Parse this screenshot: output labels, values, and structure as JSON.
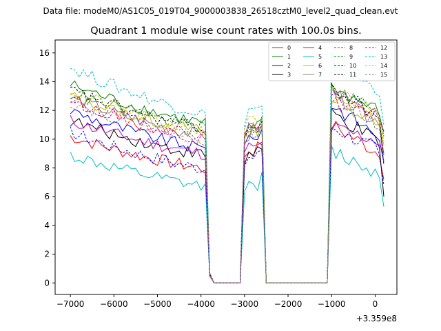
{
  "figure": {
    "suptitle": "Data file: modeM0/AS1C05_019T04_9000003838_26518cztM0_level2_quad_clean.evt",
    "title": "Quadrant 1 module wise count rates with 100.0s bins.",
    "x_offset_label": "+3.359e8"
  },
  "chart_data": {
    "type": "line",
    "title": "Quadrant 1 module wise count rates with 100.0s bins.",
    "xlabel": "",
    "ylabel": "",
    "xlim": [
      -7350,
      500
    ],
    "ylim": [
      -0.8,
      16.9
    ],
    "x_offset": 335900000,
    "xticks": [
      -7000,
      -6000,
      -5000,
      -4000,
      -3000,
      -2000,
      -1000,
      0
    ],
    "xtick_labels": [
      "−7000",
      "−6000",
      "−5000",
      "−4000",
      "−3000",
      "−2000",
      "−1000",
      "0"
    ],
    "yticks": [
      0,
      2,
      4,
      6,
      8,
      10,
      12,
      14,
      16
    ],
    "ytick_labels": [
      "0",
      "2",
      "4",
      "6",
      "8",
      "10",
      "12",
      "14",
      "16"
    ],
    "grid": false,
    "legend_position": "top-right",
    "segments": [
      {
        "start": -7000,
        "step": 100,
        "points": 32
      },
      {
        "start": -3800,
        "step": 100,
        "points": 7,
        "rates": [
          0.6,
          0.0,
          0.0,
          0.0,
          0.0,
          0.0,
          0.0
        ]
      },
      {
        "start": -3100,
        "step": 100,
        "points": 7,
        "rise": [
          0.0,
          0.62,
          0.88,
          0.93,
          0.97,
          0.98,
          0.0
        ]
      },
      {
        "start": -2400,
        "step": 100,
        "points": 13,
        "rates": [
          0,
          0,
          0,
          0,
          0,
          0,
          0,
          0,
          0,
          0,
          0,
          0,
          0
        ]
      },
      {
        "start": -1100,
        "step": 100,
        "points": 14
      }
    ],
    "series": [
      {
        "name": "0",
        "color": "#ff0000",
        "dashed": false,
        "base": 10.2,
        "slope": -3.0,
        "flare": [
          8.8,
          9.3,
          9.6
        ],
        "late": [
          11.0,
          9.0,
          7.2
        ]
      },
      {
        "name": "1",
        "color": "#008000",
        "dashed": false,
        "base": 13.8,
        "slope": -3.6,
        "flare": [
          10.3,
          11.1,
          11.4
        ],
        "late": [
          13.6,
          11.9,
          10.5
        ]
      },
      {
        "name": "2",
        "color": "#0000ff",
        "dashed": false,
        "base": 12.0,
        "slope": -3.6,
        "flare": [
          9.6,
          10.2,
          10.7
        ],
        "late": [
          12.4,
          10.2,
          8.4
        ]
      },
      {
        "name": "3",
        "color": "#000000",
        "dashed": false,
        "base": 11.3,
        "slope": -3.2,
        "flare": [
          8.2,
          8.9,
          9.3
        ],
        "late": [
          11.8,
          9.7,
          6.0
        ]
      },
      {
        "name": "4",
        "color": "#bf00bf",
        "dashed": false,
        "base": 11.3,
        "slope": -3.1,
        "flare": [
          9.0,
          9.4,
          9.8
        ],
        "late": [
          10.8,
          9.9,
          9.0
        ]
      },
      {
        "name": "5",
        "color": "#00bfbf",
        "dashed": false,
        "base": 8.9,
        "slope": -3.0,
        "flare": [
          6.2,
          6.6,
          7.7
        ],
        "late": [
          9.2,
          7.6,
          5.3
        ]
      },
      {
        "name": "6",
        "color": "#bfbf00",
        "dashed": false,
        "base": 13.0,
        "slope": -3.3,
        "flare": [
          10.1,
          10.7,
          11.0
        ],
        "late": [
          12.8,
          11.3,
          9.6
        ]
      },
      {
        "name": "7",
        "color": "#808080",
        "dashed": false,
        "base": 12.9,
        "slope": -3.6,
        "flare": [
          9.9,
          10.4,
          10.9
        ],
        "late": [
          13.2,
          11.2,
          9.0
        ]
      },
      {
        "name": "8",
        "color": "#ff0000",
        "dashed": true,
        "base": 12.8,
        "slope": -3.8,
        "flare": [
          10.2,
          10.9,
          11.3
        ],
        "late": [
          12.6,
          11.5,
          8.9
        ]
      },
      {
        "name": "9",
        "color": "#008000",
        "dashed": true,
        "base": 13.2,
        "slope": -3.2,
        "flare": [
          10.4,
          10.9,
          11.6
        ],
        "late": [
          13.5,
          12.0,
          10.2
        ]
      },
      {
        "name": "10",
        "color": "#0000ff",
        "dashed": true,
        "base": 10.5,
        "slope": -3.4,
        "flare": [
          8.2,
          8.8,
          9.2
        ],
        "late": [
          10.9,
          9.2,
          6.8
        ]
      },
      {
        "name": "11",
        "color": "#000000",
        "dashed": true,
        "base": 13.4,
        "slope": -3.6,
        "flare": [
          10.1,
          10.8,
          11.2
        ],
        "late": [
          13.4,
          11.7,
          8.2
        ]
      },
      {
        "name": "12",
        "color": "#bf00bf",
        "dashed": true,
        "base": 12.5,
        "slope": -3.0,
        "flare": [
          10.2,
          10.9,
          11.0
        ],
        "late": [
          13.1,
          11.6,
          10.6
        ]
      },
      {
        "name": "13",
        "color": "#00bfbf",
        "dashed": true,
        "base": 15.0,
        "slope": -4.3,
        "flare": [
          10.9,
          11.8,
          12.3
        ],
        "late": [
          15.5,
          13.3,
          11.0
        ]
      },
      {
        "name": "14",
        "color": "#bfbf00",
        "dashed": true,
        "base": 13.4,
        "slope": -3.9,
        "flare": [
          10.6,
          11.1,
          11.5
        ],
        "late": [
          13.6,
          11.7,
          9.9
        ]
      },
      {
        "name": "15",
        "color": "#808080",
        "dashed": true,
        "base": 12.6,
        "slope": -3.5,
        "flare": [
          10.0,
          10.6,
          11.0
        ],
        "late": [
          13.0,
          11.0,
          8.5
        ]
      }
    ]
  }
}
